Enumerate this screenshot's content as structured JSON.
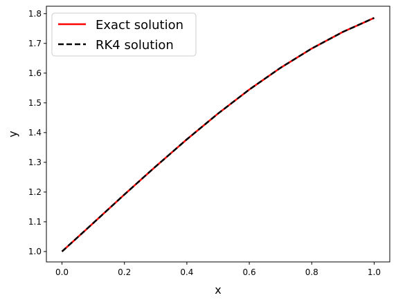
{
  "chart_data": {
    "type": "line",
    "title": "",
    "xlabel": "x",
    "ylabel": "y",
    "xlim": [
      -0.05,
      1.05
    ],
    "ylim": [
      0.965,
      1.825
    ],
    "xticks": [
      0.0,
      0.2,
      0.4,
      0.6,
      0.8,
      1.0
    ],
    "xtick_labels": [
      "0.0",
      "0.2",
      "0.4",
      "0.6",
      "0.8",
      "1.0"
    ],
    "yticks": [
      1.0,
      1.1,
      1.2,
      1.3,
      1.4,
      1.5,
      1.6,
      1.7,
      1.8
    ],
    "ytick_labels": [
      "1.0",
      "1.1",
      "1.2",
      "1.3",
      "1.4",
      "1.5",
      "1.6",
      "1.7",
      "1.8"
    ],
    "grid": false,
    "legend_position": "top-left",
    "x": [
      0.0,
      0.1,
      0.2,
      0.3,
      0.4,
      0.5,
      0.6,
      0.7,
      0.8,
      0.9,
      1.0
    ],
    "series": [
      {
        "name": "Exact solution",
        "color": "#ff0000",
        "style": "solid",
        "values": [
          1.0,
          1.0955,
          1.1918,
          1.286,
          1.3773,
          1.464,
          1.5447,
          1.6178,
          1.6827,
          1.7387,
          1.7856
        ]
      },
      {
        "name": "RK4 solution",
        "color": "#000000",
        "style": "dashed",
        "values": [
          1.0,
          1.0955,
          1.1918,
          1.286,
          1.3773,
          1.464,
          1.5447,
          1.6178,
          1.6827,
          1.7387,
          1.7856
        ]
      }
    ]
  }
}
